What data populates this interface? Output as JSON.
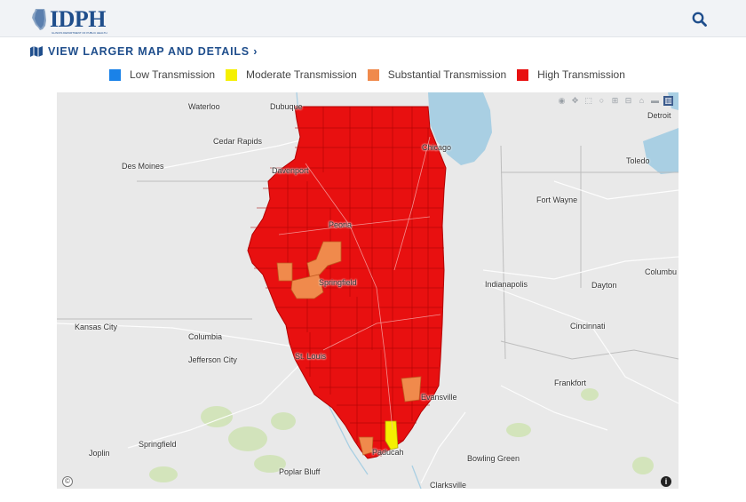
{
  "header": {
    "logo_text": "IDPH",
    "logo_subtitle": "ILLINOIS DEPARTMENT OF PUBLIC HEALTH",
    "search_icon": "search-icon"
  },
  "view_link": {
    "icon": "map-icon",
    "label": "VIEW LARGER MAP AND DETAILS ›"
  },
  "legend": [
    {
      "label": "Low Transmission",
      "color": "#1a82e8"
    },
    {
      "label": "Moderate Transmission",
      "color": "#f5f000"
    },
    {
      "label": "Substantial Transmission",
      "color": "#f08a4c"
    },
    {
      "label": "High Transmission",
      "color": "#e81010"
    }
  ],
  "map": {
    "fill_high": "#e81010",
    "fill_substantial": "#f08a4c",
    "fill_moderate": "#f5f000",
    "water": "#a9cfe3",
    "land": "#e9e9e9",
    "toolbar": [
      "camera-icon",
      "pan-icon",
      "select-icon",
      "lasso-icon",
      "zoom-in-icon",
      "zoom-out-icon",
      "home-icon",
      "reset-icon",
      "chart-icon"
    ],
    "cities": {
      "waterloo": "Waterloo",
      "dubuque": "Dubuque",
      "detroit": "Detroit",
      "cedar_rapids": "Cedar Rapids",
      "chicago": "Chicago",
      "des_moines": "Des Moines",
      "davenport": "Davenport",
      "toledo": "Toledo",
      "fort_wayne": "Fort Wayne",
      "peoria": "Peoria",
      "columbus": "Columbu",
      "springfield_il": "Springfield",
      "indianapolis": "Indianapolis",
      "dayton": "Dayton",
      "kansas_city": "Kansas City",
      "columbia": "Columbia",
      "cincinnati": "Cincinnati",
      "jefferson_city": "Jefferson City",
      "st_louis": "St. Louis",
      "frankfort": "Frankfort",
      "evansville": "Evansville",
      "springfield_mo": "Springfield",
      "joplin": "Joplin",
      "paducah": "Paducah",
      "bowling_green": "Bowling Green",
      "poplar_bluff": "Poplar Bluff",
      "clarksville": "Clarksville"
    }
  }
}
